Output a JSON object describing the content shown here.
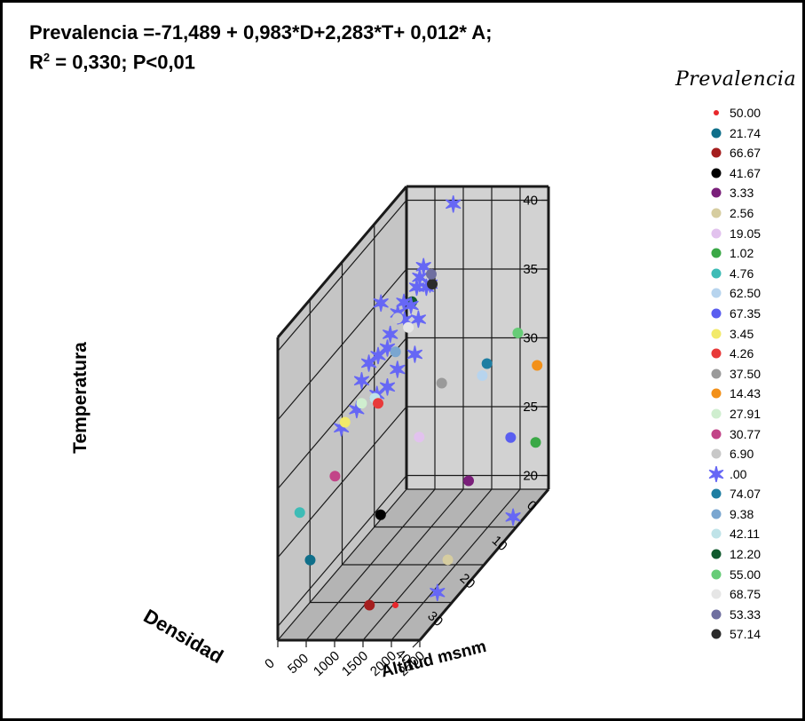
{
  "title_line1": "Prevalencia =-71,489 + 0,983*D+2,283*T+ 0,012* A;",
  "title_line2_prefix": "R",
  "title_line2_sup": "2",
  "title_line2_rest": " = 0,330; P<0,01",
  "legend_title": "Prevalencia",
  "chart_data": {
    "type": "scatter",
    "subtype": "3d-scatter",
    "x_axis": {
      "label": "Altitud msnm",
      "range": [
        0,
        2500
      ],
      "ticks": [
        "0",
        "500",
        "1000",
        "1500",
        "2000",
        "2500"
      ]
    },
    "y_axis": {
      "label": "Densidad",
      "range": [
        0,
        40
      ],
      "ticks": [
        "0",
        "10",
        "20",
        "30",
        "40"
      ]
    },
    "z_axis": {
      "label": "Temperatura",
      "range": [
        19,
        41
      ],
      "ticks": [
        "20",
        "25",
        "30",
        "35",
        "40"
      ]
    },
    "grid": true,
    "legend_position": "right",
    "series": [
      {
        "name": "50.00",
        "color": "#e8272b",
        "marker": "dot-small",
        "points": [
          [
            1730,
            34,
            19.9
          ]
        ]
      },
      {
        "name": "21.74",
        "color": "#0f6f8a",
        "marker": "dot",
        "points": [
          [
            400,
            37,
            24
          ]
        ]
      },
      {
        "name": "66.67",
        "color": "#a51e1e",
        "marker": "dot",
        "points": [
          [
            1500,
            38,
            21
          ]
        ]
      },
      {
        "name": "41.67",
        "color": "#000000",
        "marker": "dot",
        "points": [
          [
            960,
            25,
            24
          ]
        ]
      },
      {
        "name": "3.33",
        "color": "#7a1f7a",
        "marker": "dot",
        "points": [
          [
            2000,
            16,
            24
          ]
        ]
      },
      {
        "name": "2.56",
        "color": "#d6cda0",
        "marker": "dot",
        "points": [
          [
            2200,
            26,
            21
          ]
        ]
      },
      {
        "name": "19.05",
        "color": "#e2c2ee",
        "marker": "dot",
        "points": [
          [
            1300,
            19,
            28
          ]
        ]
      },
      {
        "name": "1.02",
        "color": "#3aa846",
        "marker": "dot",
        "points": [
          [
            2500,
            4,
            23.5
          ]
        ]
      },
      {
        "name": "4.76",
        "color": "#3ebcb6",
        "marker": "dot",
        "points": [
          [
            330,
            39,
            28
          ]
        ]
      },
      {
        "name": "62.50",
        "color": "#b7d4ee",
        "marker": "dot",
        "points": [
          [
            1900,
            10,
            30
          ]
        ]
      },
      {
        "name": "67.35",
        "color": "#5a5ef0",
        "marker": "dot",
        "points": [
          [
            2400,
            10,
            25.5
          ]
        ]
      },
      {
        "name": "3.45",
        "color": "#f2ea6a",
        "marker": "dot",
        "points": [
          [
            390,
            26,
            31
          ]
        ]
      },
      {
        "name": "4.26",
        "color": "#e83a3a",
        "marker": "dot",
        "points": [
          [
            690,
            21,
            31
          ]
        ]
      },
      {
        "name": "37.50",
        "color": "#9a9a9a",
        "marker": "dot",
        "points": [
          [
            1300,
            12,
            30
          ]
        ]
      },
      {
        "name": "14.43",
        "color": "#f29019",
        "marker": "dot",
        "points": [
          [
            2300,
            0,
            28
          ]
        ]
      },
      {
        "name": "27.91",
        "color": "#cfeecf",
        "marker": "dot",
        "points": [
          [
            400,
            21,
            31
          ]
        ]
      },
      {
        "name": "30.77",
        "color": "#c24488",
        "marker": "dot",
        "points": [
          [
            610,
            33,
            29
          ]
        ]
      },
      {
        "name": "6.90",
        "color": "#c8c8c8",
        "marker": "dot",
        "points": [
          [
            580,
            13,
            35
          ]
        ]
      },
      {
        "name": ".00",
        "color": "#6667f5",
        "marker": "star",
        "points": [
          [
            2500,
            11,
            20
          ],
          [
            2300,
            31,
            20
          ],
          [
            880,
            1,
            40
          ],
          [
            640,
            4,
            35
          ],
          [
            460,
            4,
            35.5
          ],
          [
            520,
            3,
            34.5
          ],
          [
            420,
            6,
            34
          ],
          [
            350,
            7,
            34.5
          ],
          [
            300,
            8,
            34
          ],
          [
            280,
            10,
            33
          ],
          [
            230,
            10,
            32
          ],
          [
            180,
            12,
            32
          ],
          [
            130,
            14,
            32
          ],
          [
            60,
            15,
            31
          ],
          [
            600,
            8,
            31
          ],
          [
            520,
            12,
            31
          ],
          [
            400,
            13,
            30
          ],
          [
            330,
            15,
            30
          ],
          [
            200,
            19,
            30
          ],
          [
            100,
            22,
            29.5
          ],
          [
            470,
            3,
            36
          ],
          [
            550,
            6,
            33
          ],
          [
            420,
            8,
            33.5
          ],
          [
            350,
            3,
            34.5
          ],
          [
            60,
            9,
            35
          ]
        ]
      },
      {
        "name": "74.07",
        "color": "#1e7ea2",
        "marker": "dot",
        "points": [
          [
            1700,
            5,
            29.5
          ]
        ]
      },
      {
        "name": "9.38",
        "color": "#7aa6d0",
        "marker": "dot",
        "points": [
          [
            430,
            11,
            32
          ]
        ]
      },
      {
        "name": "42.11",
        "color": "#bfe3e8",
        "marker": "dot",
        "points": [
          [
            350,
            16,
            30
          ]
        ]
      },
      {
        "name": "12.20",
        "color": "#115a2e",
        "marker": "dot",
        "points": [
          [
            380,
            5,
            34
          ]
        ]
      },
      {
        "name": "55.00",
        "color": "#66cc77",
        "marker": "dot",
        "points": [
          [
            2300,
            6,
            32
          ]
        ]
      },
      {
        "name": "68.75",
        "color": "#e6e6e6",
        "marker": "dot",
        "points": [
          [
            600,
            10,
            33.5
          ]
        ]
      },
      {
        "name": "53.33",
        "color": "#6f6fa0",
        "marker": "dot",
        "points": [
          [
            720,
            5,
            36
          ]
        ]
      },
      {
        "name": "57.14",
        "color": "#2b2b2b",
        "marker": "dot",
        "points": [
          [
            680,
            4,
            35
          ]
        ]
      }
    ]
  }
}
